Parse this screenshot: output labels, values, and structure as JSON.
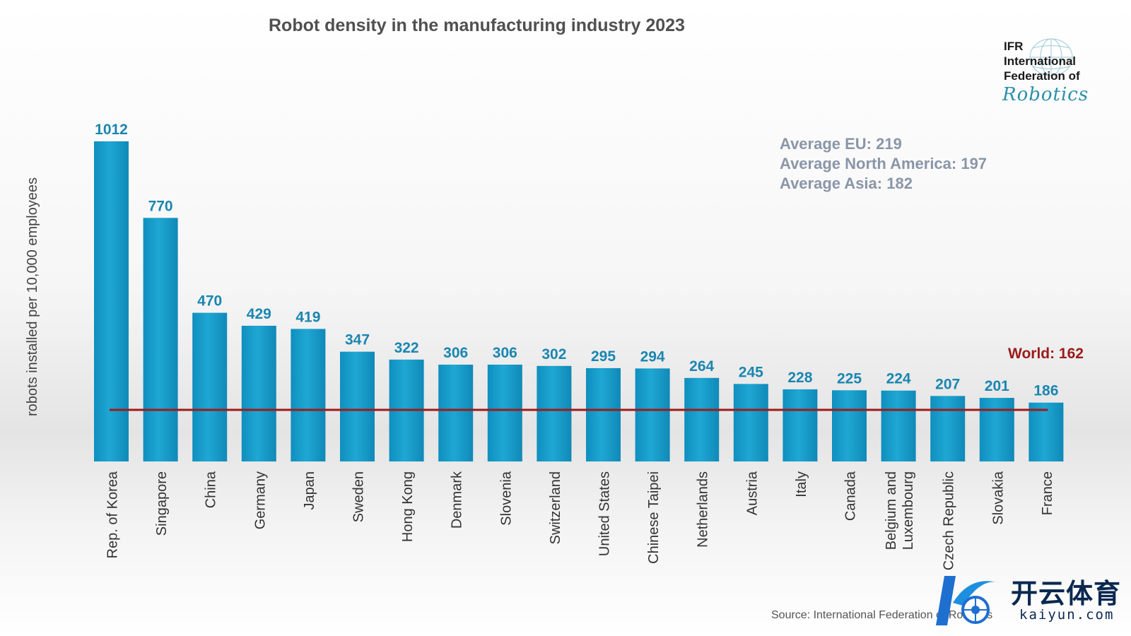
{
  "chart_data": {
    "type": "bar",
    "title": "Robot density in the manufacturing industry 2023",
    "ylabel": "robots installed per 10,000 employees",
    "xlabel": "",
    "categories": [
      "Rep. of Korea",
      "Singapore",
      "China",
      "Germany",
      "Japan",
      "Sweden",
      "Hong Kong",
      "Denmark",
      "Slovenia",
      "Switzerland",
      "United States",
      "Chinese Taipei",
      "Netherlands",
      "Austria",
      "Italy",
      "Canada",
      "Belgium and Luxembourg",
      "Czech Republic",
      "Slovakia",
      "France"
    ],
    "values": [
      1012,
      770,
      470,
      429,
      419,
      347,
      322,
      306,
      306,
      302,
      295,
      294,
      264,
      245,
      228,
      225,
      224,
      207,
      201,
      186
    ],
    "ylim": [
      0,
      1012
    ],
    "grid": false,
    "reference_line": {
      "label": "World: 162",
      "value": 162,
      "color": "#9c1a1a"
    },
    "annotations": [
      "Average EU: 219",
      "Average North America: 197",
      "Average Asia: 182"
    ],
    "bar_color": "#1aa0cc",
    "label_color": "#1a86b0"
  },
  "source": "Source: International Federation of Robotics",
  "logo": {
    "lines": [
      "IFR",
      "International",
      "Federation of"
    ],
    "script": "Robotics"
  },
  "watermark": {
    "cn": "开云体育",
    "en": "kaiyun.com"
  }
}
